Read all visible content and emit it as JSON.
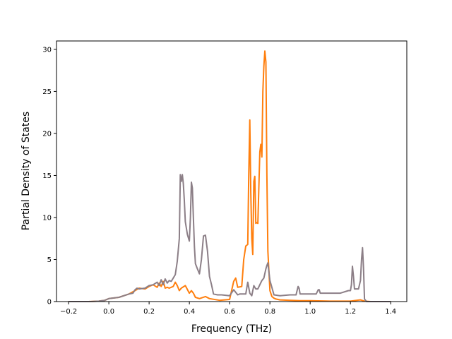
{
  "chart_data": {
    "type": "line",
    "title": "",
    "xlabel": "Frequency (THz)",
    "ylabel": "Partial Density of States",
    "xlim": [
      -0.26,
      1.48
    ],
    "ylim": [
      0,
      31
    ],
    "xticks": [
      -0.2,
      0.0,
      0.2,
      0.4,
      0.6,
      0.8,
      1.0,
      1.2,
      1.4
    ],
    "xtick_labels": [
      "−0.2",
      "0.0",
      "0.2",
      "0.4",
      "0.6",
      "0.8",
      "1.0",
      "1.2",
      "1.4"
    ],
    "yticks": [
      0,
      5,
      10,
      15,
      20,
      25,
      30
    ],
    "ytick_labels": [
      "0",
      "5",
      "10",
      "15",
      "20",
      "25",
      "30"
    ],
    "grid": false,
    "legend": "none",
    "colors": [
      "#ff7f0e",
      "#8c7f87"
    ],
    "series": [
      {
        "color": "#ff7f0e",
        "x": [
          -0.2,
          -0.1,
          -0.05,
          -0.02,
          0.0,
          0.05,
          0.1,
          0.13,
          0.15,
          0.18,
          0.2,
          0.22,
          0.24,
          0.25,
          0.26,
          0.27,
          0.28,
          0.29,
          0.3,
          0.32,
          0.33,
          0.34,
          0.35,
          0.36,
          0.38,
          0.4,
          0.41,
          0.42,
          0.43,
          0.45,
          0.48,
          0.5,
          0.55,
          0.6,
          0.62,
          0.63,
          0.64,
          0.66,
          0.67,
          0.68,
          0.69,
          0.695,
          0.7,
          0.705,
          0.71,
          0.715,
          0.72,
          0.725,
          0.73,
          0.735,
          0.74,
          0.75,
          0.755,
          0.76,
          0.765,
          0.77,
          0.775,
          0.78,
          0.785,
          0.79,
          0.8,
          0.81,
          0.82,
          0.83,
          0.85,
          0.9,
          0.95,
          1.0,
          1.1,
          1.2,
          1.25,
          1.27,
          1.3,
          1.4
        ],
        "y": [
          0,
          0,
          0.05,
          0.15,
          0.35,
          0.5,
          0.9,
          1.3,
          1.6,
          1.5,
          1.8,
          2.0,
          1.7,
          2.2,
          1.8,
          2.4,
          1.6,
          1.7,
          1.6,
          1.8,
          2.3,
          1.9,
          1.3,
          1.6,
          1.9,
          1.0,
          1.3,
          1.0,
          0.5,
          0.35,
          0.6,
          0.35,
          0.15,
          0.25,
          2.4,
          2.8,
          1.7,
          1.8,
          5.0,
          6.6,
          6.8,
          15.0,
          21.6,
          13.0,
          7.5,
          5.6,
          14.3,
          14.9,
          9.3,
          9.4,
          9.3,
          17.8,
          18.7,
          17.2,
          25.0,
          28.0,
          29.8,
          28.5,
          15.0,
          6.0,
          1.3,
          0.6,
          0.4,
          0.3,
          0.2,
          0.15,
          0.1,
          0.1,
          0.05,
          0.05,
          0.2,
          0.05,
          0,
          0
        ]
      },
      {
        "color": "#8c7f87",
        "x": [
          -0.2,
          -0.1,
          -0.05,
          -0.02,
          0.0,
          0.05,
          0.1,
          0.12,
          0.13,
          0.14,
          0.15,
          0.18,
          0.2,
          0.22,
          0.24,
          0.25,
          0.26,
          0.27,
          0.28,
          0.29,
          0.3,
          0.31,
          0.32,
          0.33,
          0.34,
          0.35,
          0.355,
          0.36,
          0.365,
          0.37,
          0.375,
          0.38,
          0.39,
          0.4,
          0.405,
          0.41,
          0.415,
          0.42,
          0.425,
          0.43,
          0.44,
          0.45,
          0.46,
          0.47,
          0.48,
          0.49,
          0.5,
          0.51,
          0.52,
          0.54,
          0.56,
          0.6,
          0.62,
          0.63,
          0.64,
          0.65,
          0.66,
          0.67,
          0.68,
          0.69,
          0.7,
          0.71,
          0.72,
          0.73,
          0.74,
          0.75,
          0.76,
          0.77,
          0.78,
          0.785,
          0.79,
          0.8,
          0.82,
          0.85,
          0.9,
          0.93,
          0.94,
          0.945,
          0.95,
          1.0,
          1.03,
          1.04,
          1.045,
          1.05,
          1.1,
          1.15,
          1.19,
          1.2,
          1.205,
          1.21,
          1.215,
          1.22,
          1.24,
          1.25,
          1.255,
          1.26,
          1.265,
          1.27,
          1.28,
          1.3,
          1.4
        ],
        "y": [
          0,
          0,
          0.05,
          0.15,
          0.35,
          0.5,
          0.9,
          1.0,
          1.4,
          1.6,
          1.5,
          1.6,
          1.9,
          2.0,
          2.3,
          1.9,
          2.6,
          2.0,
          2.7,
          2.2,
          2.5,
          2.4,
          2.8,
          3.2,
          4.8,
          7.5,
          15.1,
          14.3,
          15.1,
          14.0,
          12.0,
          9.5,
          8.0,
          7.2,
          10.0,
          14.2,
          13.5,
          10.0,
          6.5,
          4.5,
          3.9,
          3.3,
          5.0,
          7.8,
          7.9,
          6.0,
          3.0,
          2.0,
          0.9,
          0.8,
          0.8,
          0.7,
          1.4,
          1.1,
          0.8,
          0.9,
          0.9,
          0.9,
          0.9,
          2.3,
          1.0,
          0.7,
          1.9,
          1.5,
          1.5,
          2.0,
          2.5,
          2.8,
          3.9,
          4.3,
          4.6,
          2.5,
          0.8,
          0.7,
          0.8,
          0.8,
          1.8,
          1.6,
          0.9,
          0.9,
          0.9,
          1.4,
          1.4,
          1.0,
          1.0,
          1.0,
          1.3,
          1.3,
          2.0,
          4.2,
          3.0,
          1.5,
          1.5,
          2.5,
          5.0,
          6.4,
          4.0,
          0.3,
          0,
          0,
          0
        ]
      }
    ]
  }
}
